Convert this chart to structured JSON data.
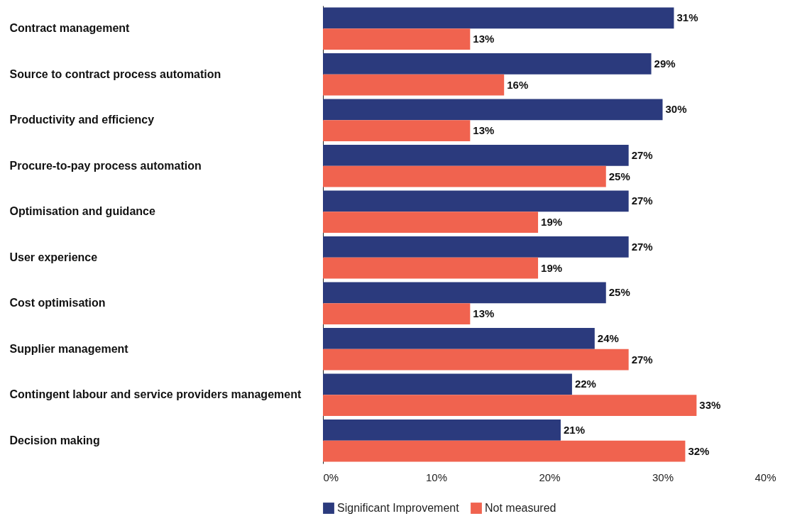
{
  "chart_data": {
    "type": "bar",
    "orientation": "horizontal",
    "categories": [
      "Contract management",
      "Source to contract process automation",
      "Productivity and efficiency",
      "Procure-to-pay process automation",
      "Optimisation and guidance",
      "User experience",
      "Cost optimisation",
      "Supplier management",
      "Contingent labour and service providers management",
      "Decision making"
    ],
    "series": [
      {
        "name": "Significant Improvement",
        "color": "#2b3a7d",
        "values": [
          31,
          29,
          30,
          27,
          27,
          27,
          25,
          24,
          22,
          21
        ],
        "value_labels": [
          "31%",
          "29%",
          "30%",
          "27%",
          "27%",
          "27%",
          "25%",
          "24%",
          "22%",
          "21%"
        ]
      },
      {
        "name": "Not measured",
        "color": "#f0634f",
        "values": [
          13,
          16,
          13,
          25,
          19,
          19,
          13,
          27,
          33,
          32
        ],
        "value_labels": [
          "13%",
          "16%",
          "13%",
          "25%",
          "19%",
          "19%",
          "13%",
          "27%",
          "33%",
          "32%"
        ]
      }
    ],
    "xlim": [
      0,
      40
    ],
    "xticks": [
      {
        "value": 0,
        "label": "0%"
      },
      {
        "value": 10,
        "label": "10%"
      },
      {
        "value": 20,
        "label": "20%"
      },
      {
        "value": 30,
        "label": "30%"
      },
      {
        "value": 40,
        "label": "40%"
      }
    ],
    "grid": false,
    "legend": "bottom"
  }
}
